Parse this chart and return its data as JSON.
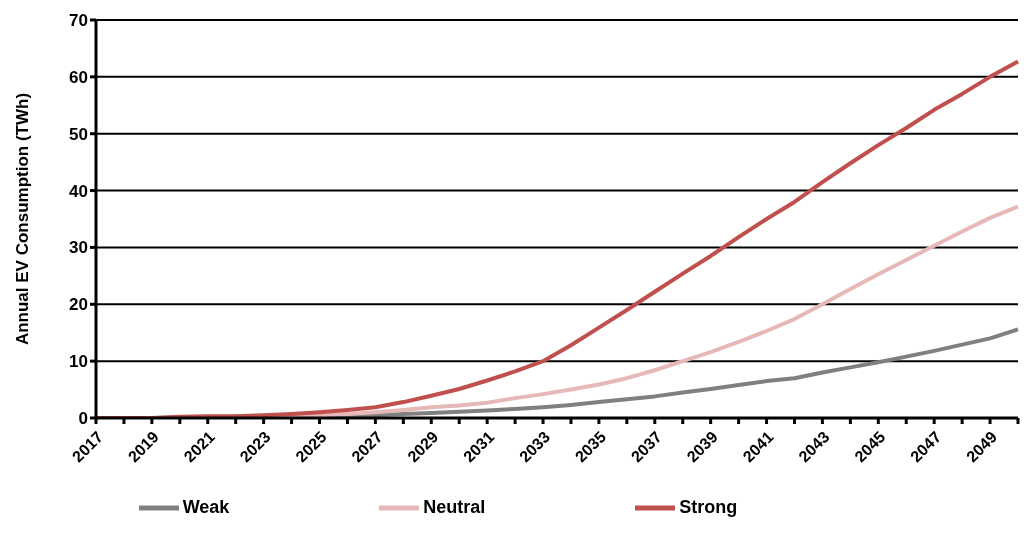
{
  "chart_data": {
    "type": "line",
    "ylabel": "Annual EV Consumption (TWh)",
    "categories": [
      "2017",
      null,
      "2019",
      null,
      "2021",
      null,
      "2023",
      null,
      "2025",
      null,
      "2027",
      null,
      "2029",
      null,
      "2031",
      null,
      "2033",
      null,
      "2035",
      null,
      "2037",
      null,
      "2039",
      null,
      "2041",
      null,
      "2043",
      null,
      "2045",
      null,
      "2047",
      null,
      "2049",
      null
    ],
    "series": [
      {
        "name": "Weak",
        "color": "#808080",
        "values": [
          0,
          0,
          0,
          0,
          0.1,
          0.1,
          0.1,
          0.2,
          0.3,
          0.4,
          0.5,
          0.7,
          0.9,
          1.1,
          1.3,
          1.6,
          1.9,
          2.3,
          2.8,
          3.3,
          3.8,
          4.5,
          5.1,
          5.8,
          6.5,
          7.0,
          8.0,
          8.9,
          9.8,
          10.8,
          11.8,
          12.9,
          14.0,
          15.6
        ]
      },
      {
        "name": "Neutral",
        "color": "#e6b9b8",
        "values": [
          0,
          0,
          0,
          0.1,
          0.1,
          0.2,
          0.3,
          0.4,
          0.5,
          0.7,
          1.0,
          1.4,
          1.9,
          2.2,
          2.7,
          3.5,
          4.2,
          5.0,
          5.9,
          7.0,
          8.4,
          10.0,
          11.6,
          13.4,
          15.3,
          17.4,
          20,
          22.7,
          25.3,
          27.8,
          30.3,
          32.8,
          35.2,
          37.2
        ]
      },
      {
        "name": "Strong",
        "color": "#c0504d",
        "values": [
          0,
          0,
          0,
          0.2,
          0.3,
          0.3,
          0.5,
          0.7,
          1.0,
          1.4,
          1.9,
          2.8,
          3.9,
          5.1,
          6.6,
          8.2,
          10.0,
          12.8,
          15.9,
          19,
          22.2,
          25.4,
          28.5,
          31.8,
          35,
          38,
          41.5,
          44.8,
          48,
          51,
          54.2,
          57,
          60,
          62.7
        ]
      }
    ],
    "ylim": [
      0,
      70
    ],
    "yticks": [
      0,
      10,
      20,
      30,
      40,
      50,
      60,
      70
    ],
    "grid": "y",
    "legend": "bottom",
    "marker": "none",
    "line_style": "solid"
  }
}
